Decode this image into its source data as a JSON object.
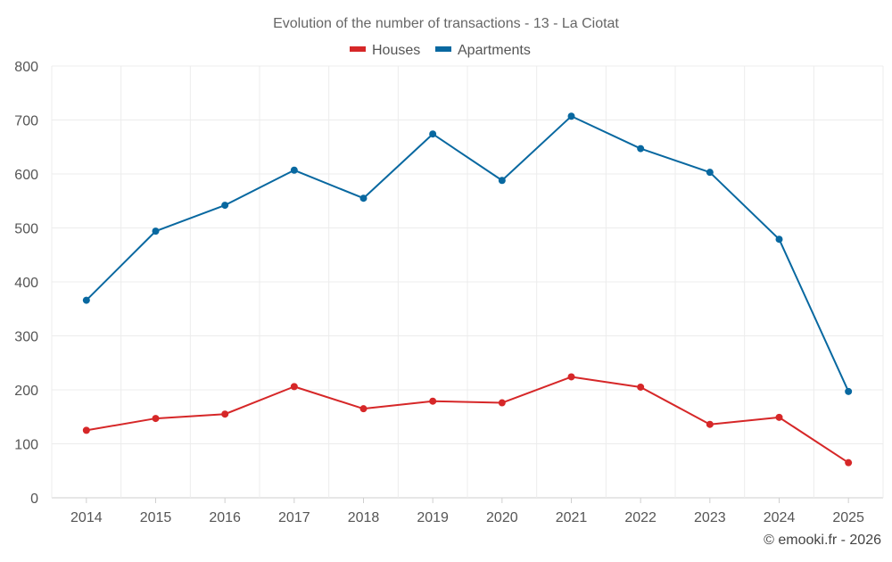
{
  "chart_data": {
    "type": "line",
    "title": "Evolution of the number of transactions - 13 - La Ciotat",
    "categories": [
      "2014",
      "2015",
      "2016",
      "2017",
      "2018",
      "2019",
      "2020",
      "2021",
      "2022",
      "2023",
      "2024",
      "2025"
    ],
    "series": [
      {
        "name": "Houses",
        "color": "#d62728",
        "values": [
          125,
          147,
          155,
          206,
          165,
          179,
          176,
          224,
          205,
          136,
          149,
          65
        ]
      },
      {
        "name": "Apartments",
        "color": "#0868a0",
        "values": [
          366,
          494,
          542,
          607,
          555,
          674,
          588,
          707,
          647,
          603,
          479,
          197
        ]
      }
    ],
    "ylim": [
      0,
      800
    ],
    "yticks": [
      0,
      100,
      200,
      300,
      400,
      500,
      600,
      700,
      800
    ],
    "xlabel": "",
    "ylabel": "",
    "grid": true,
    "legend_position": "top-center"
  },
  "credit": "© emooki.fr - 2026"
}
